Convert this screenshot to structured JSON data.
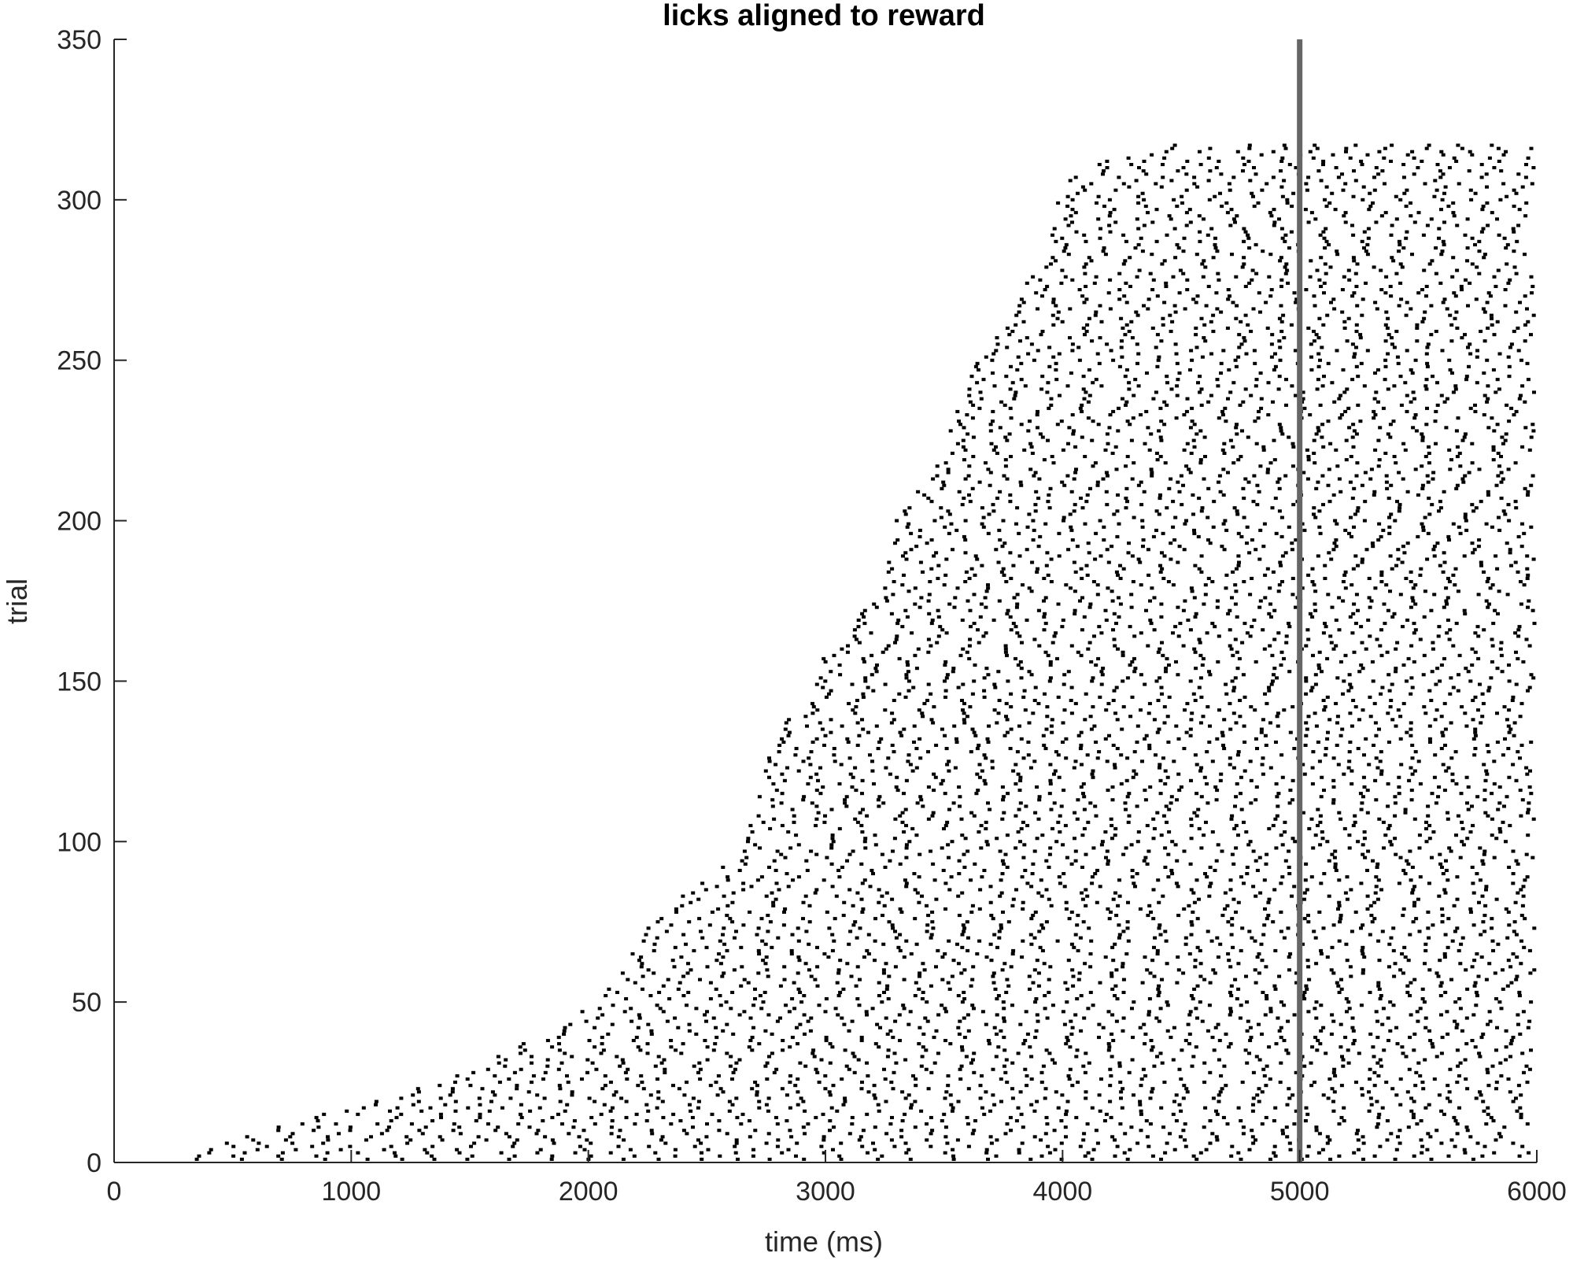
{
  "chart_data": {
    "type": "scatter",
    "title": "licks aligned to reward",
    "xlabel": "time (ms)",
    "ylabel": "trial",
    "xlim": [
      0,
      6000
    ],
    "ylim": [
      0,
      350
    ],
    "xticks": [
      0,
      1000,
      2000,
      3000,
      4000,
      5000,
      6000
    ],
    "yticks": [
      0,
      50,
      100,
      150,
      200,
      250,
      300,
      350
    ],
    "grid": false,
    "marker": "short horizontal tick per lick",
    "reference_line": {
      "x": 5000,
      "color": "#666666"
    },
    "colors": {
      "marks": "#000000",
      "axes": "#262626"
    },
    "trial_count": 317,
    "lick_interval_ms": 150,
    "first_lick_edge": [
      [
        1,
        330
      ],
      [
        10,
        640
      ],
      [
        20,
        1200
      ],
      [
        30,
        1590
      ],
      [
        40,
        1870
      ],
      [
        50,
        2090
      ],
      [
        60,
        2210
      ],
      [
        70,
        2280
      ],
      [
        80,
        2390
      ],
      [
        90,
        2600
      ],
      [
        100,
        2700
      ],
      [
        110,
        2750
      ],
      [
        120,
        2800
      ],
      [
        130,
        2830
      ],
      [
        140,
        2900
      ],
      [
        150,
        3000
      ],
      [
        160,
        3070
      ],
      [
        170,
        3200
      ],
      [
        180,
        3320
      ],
      [
        190,
        3330
      ],
      [
        200,
        3350
      ],
      [
        210,
        3440
      ],
      [
        220,
        3570
      ],
      [
        230,
        3590
      ],
      [
        240,
        3650
      ],
      [
        250,
        3700
      ],
      [
        260,
        3810
      ],
      [
        270,
        3860
      ],
      [
        280,
        3960
      ],
      [
        290,
        4000
      ],
      [
        300,
        4010
      ],
      [
        310,
        4140
      ],
      [
        317,
        4480
      ]
    ]
  }
}
